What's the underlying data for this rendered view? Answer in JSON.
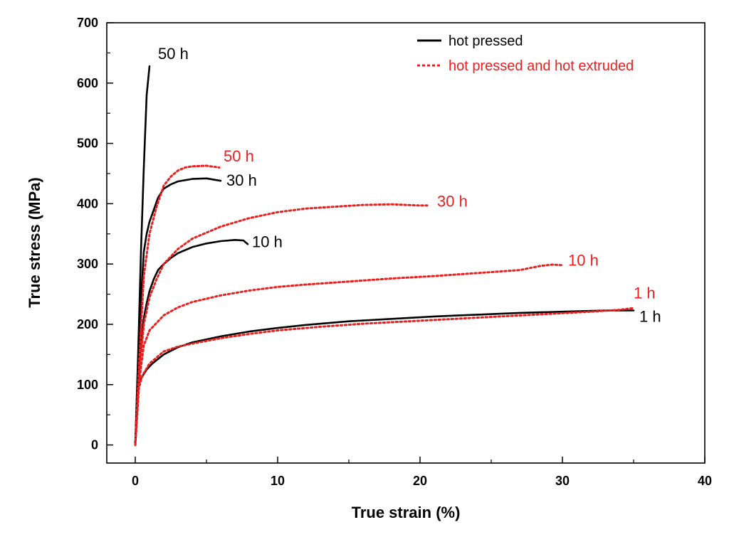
{
  "chart_data": {
    "type": "line",
    "title": "",
    "xlabel": "True strain (%)",
    "ylabel": "True stress (MPa)",
    "xlim": [
      -2,
      40
    ],
    "ylim": [
      -30,
      700
    ],
    "x_ticks": [
      0,
      10,
      20,
      30,
      40
    ],
    "y_ticks": [
      0,
      100,
      200,
      300,
      400,
      500,
      600,
      700
    ],
    "x_tick_labels": [
      "0",
      "10",
      "20",
      "30",
      "40"
    ],
    "y_tick_labels": [
      "0",
      "100",
      "200",
      "300",
      "400",
      "500",
      "600",
      "700"
    ],
    "grid": false,
    "legend_position": "top-right",
    "colors": {
      "hot_pressed": "#000000",
      "extruded": "#e8201f"
    },
    "legend": [
      {
        "label": "hot pressed",
        "style": "solid",
        "color": "#000000"
      },
      {
        "label": "hot pressed and hot extruded",
        "style": "dotted",
        "color": "#e8201f"
      }
    ],
    "series": [
      {
        "name": "hot pressed 50 h",
        "group": "hot pressed",
        "label": "50 h",
        "color": "#000000",
        "dash": "solid",
        "x": [
          0,
          0.2,
          0.4,
          0.6,
          0.8,
          1.0
        ],
        "y": [
          0,
          150,
          320,
          460,
          580,
          628
        ]
      },
      {
        "name": "hot pressed 30 h",
        "group": "hot pressed",
        "label": "30 h",
        "color": "#000000",
        "dash": "solid",
        "x": [
          0,
          0.2,
          0.4,
          0.6,
          0.8,
          1.0,
          1.3,
          1.6,
          2.0,
          2.5,
          3,
          4,
          5,
          6
        ],
        "y": [
          0,
          120,
          240,
          320,
          350,
          370,
          390,
          410,
          425,
          432,
          437,
          441,
          442,
          438
        ]
      },
      {
        "name": "hot pressed 10 h",
        "group": "hot pressed",
        "label": "10 h",
        "color": "#000000",
        "dash": "solid",
        "x": [
          0,
          0.2,
          0.4,
          0.6,
          0.8,
          1.0,
          1.3,
          1.6,
          2.0,
          2.5,
          3,
          4,
          5,
          6,
          7,
          7.6,
          7.9
        ],
        "y": [
          0,
          100,
          170,
          210,
          235,
          255,
          275,
          290,
          300,
          310,
          318,
          328,
          334,
          338,
          340,
          339,
          333
        ]
      },
      {
        "name": "hot pressed 1 h",
        "group": "hot pressed",
        "label": "1 h",
        "color": "#000000",
        "dash": "solid",
        "x": [
          0,
          0.2,
          0.4,
          0.8,
          1.2,
          2,
          3,
          4,
          6,
          8,
          10,
          12,
          15,
          18,
          21,
          24,
          27,
          30,
          33,
          35
        ],
        "y": [
          0,
          100,
          110,
          125,
          135,
          150,
          162,
          170,
          180,
          188,
          194,
          199,
          205,
          209,
          213,
          216,
          219,
          221,
          223,
          223
        ]
      },
      {
        "name": "extruded 50 h",
        "group": "hot pressed and hot extruded",
        "label": "50 h",
        "color": "#e8201f",
        "dash": "dotted",
        "x": [
          0,
          0.3,
          0.6,
          1.0,
          1.5,
          2.0,
          2.5,
          3,
          3.5,
          4,
          5,
          5.9
        ],
        "y": [
          0,
          150,
          280,
          350,
          395,
          430,
          445,
          455,
          460,
          462,
          463,
          460
        ]
      },
      {
        "name": "extruded 30 h",
        "group": "hot pressed and hot extruded",
        "label": "30 h",
        "color": "#e8201f",
        "dash": "dotted",
        "x": [
          0,
          0.3,
          0.6,
          1.0,
          1.5,
          2,
          3,
          4,
          6,
          8,
          10,
          12,
          14,
          16,
          18,
          20,
          20.5
        ],
        "y": [
          0,
          120,
          200,
          245,
          275,
          300,
          325,
          342,
          362,
          376,
          386,
          392,
          395,
          398,
          399,
          397,
          397
        ]
      },
      {
        "name": "extruded 10 h",
        "group": "hot pressed and hot extruded",
        "label": "10 h",
        "color": "#e8201f",
        "dash": "dotted",
        "x": [
          0,
          0.3,
          0.6,
          1.0,
          2,
          3,
          4,
          6,
          8,
          10,
          12,
          15,
          18,
          21,
          24,
          27,
          28.5,
          29.3,
          30
        ],
        "y": [
          0,
          110,
          165,
          190,
          215,
          228,
          237,
          248,
          256,
          262,
          266,
          271,
          276,
          280,
          285,
          290,
          297,
          299,
          298
        ]
      },
      {
        "name": "extruded 1 h",
        "group": "hot pressed and hot extruded",
        "label": "1 h",
        "color": "#e8201f",
        "dash": "dotted",
        "x": [
          0,
          0.2,
          0.5,
          1,
          2,
          3,
          4,
          6,
          8,
          10,
          13,
          16,
          20,
          24,
          28,
          32,
          34,
          35
        ],
        "y": [
          0,
          90,
          115,
          135,
          155,
          163,
          168,
          177,
          184,
          190,
          196,
          201,
          206,
          211,
          216,
          221,
          224,
          227
        ]
      }
    ],
    "annotations": [
      {
        "text": "50 h",
        "x": 1.6,
        "y": 640,
        "color": "#000000"
      },
      {
        "text": "50 h",
        "x": 6.2,
        "y": 470,
        "color": "#e8201f"
      },
      {
        "text": "30 h",
        "x": 6.4,
        "y": 430,
        "color": "#000000"
      },
      {
        "text": "30 h",
        "x": 21.2,
        "y": 395,
        "color": "#e8201f"
      },
      {
        "text": "10 h",
        "x": 8.2,
        "y": 328,
        "color": "#000000"
      },
      {
        "text": "10 h",
        "x": 30.4,
        "y": 297,
        "color": "#e8201f"
      },
      {
        "text": "1 h",
        "x": 35.0,
        "y": 243,
        "color": "#e8201f"
      },
      {
        "text": "1 h",
        "x": 35.4,
        "y": 204,
        "color": "#000000"
      }
    ]
  }
}
